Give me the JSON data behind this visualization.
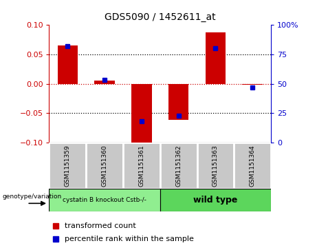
{
  "title": "GDS5090 / 1452611_at",
  "samples": [
    "GSM1151359",
    "GSM1151360",
    "GSM1151361",
    "GSM1151362",
    "GSM1151363",
    "GSM1151364"
  ],
  "red_values": [
    0.065,
    0.005,
    -0.103,
    -0.062,
    0.088,
    -0.002
  ],
  "blue_values_pct": [
    82,
    53,
    18,
    23,
    80,
    47
  ],
  "ylim_left": [
    -0.1,
    0.1
  ],
  "ylim_right": [
    0,
    100
  ],
  "yticks_left": [
    -0.1,
    -0.05,
    0.0,
    0.05,
    0.1
  ],
  "yticks_right": [
    0,
    25,
    50,
    75,
    100
  ],
  "group1_label": "cystatin B knockout Cstb-/-",
  "group2_label": "wild type",
  "group1_indices": [
    0,
    1,
    2
  ],
  "group2_indices": [
    3,
    4,
    5
  ],
  "group1_color": "#90EE90",
  "group2_color": "#5CD65C",
  "sample_box_color": "#C8C8C8",
  "bar_color_red": "#CC0000",
  "bar_color_blue": "#0000CC",
  "legend_label_red": "transformed count",
  "legend_label_blue": "percentile rank within the sample",
  "genotype_label": "genotype/variation",
  "bar_width": 0.55,
  "fig_width": 4.61,
  "fig_height": 3.63,
  "fig_dpi": 100
}
